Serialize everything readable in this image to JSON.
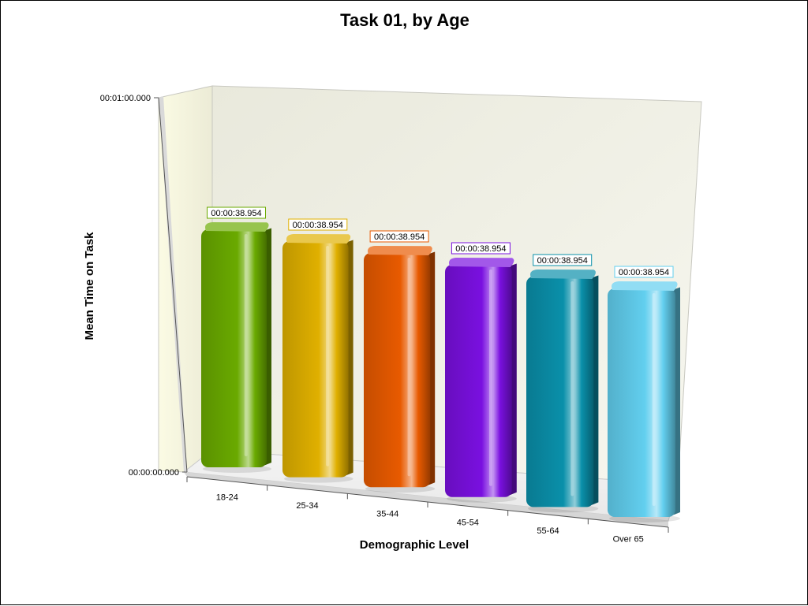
{
  "chart_data": {
    "type": "bar",
    "title": "Task 01, by Age",
    "xlabel": "Demographic Level",
    "ylabel": "Mean Time on Task",
    "categories": [
      "18-24",
      "25-34",
      "35-44",
      "45-54",
      "55-64",
      "Over 65"
    ],
    "values": [
      38.954,
      38.954,
      38.954,
      38.954,
      38.954,
      38.954
    ],
    "value_labels": [
      "00:00:38.954",
      "00:00:38.954",
      "00:00:38.954",
      "00:00:38.954",
      "00:00:38.954",
      "00:00:38.954"
    ],
    "y_ticks": [
      {
        "value": 0,
        "label": "00:00:00.000"
      },
      {
        "value": 60,
        "label": "00:01:00.000"
      }
    ],
    "ylim": [
      0,
      60
    ],
    "colors": [
      "#6aaa00",
      "#e0b000",
      "#e85a00",
      "#7a10e0",
      "#0a90aa",
      "#62cfef"
    ],
    "grid": false,
    "legend": "none",
    "style": "3d"
  }
}
